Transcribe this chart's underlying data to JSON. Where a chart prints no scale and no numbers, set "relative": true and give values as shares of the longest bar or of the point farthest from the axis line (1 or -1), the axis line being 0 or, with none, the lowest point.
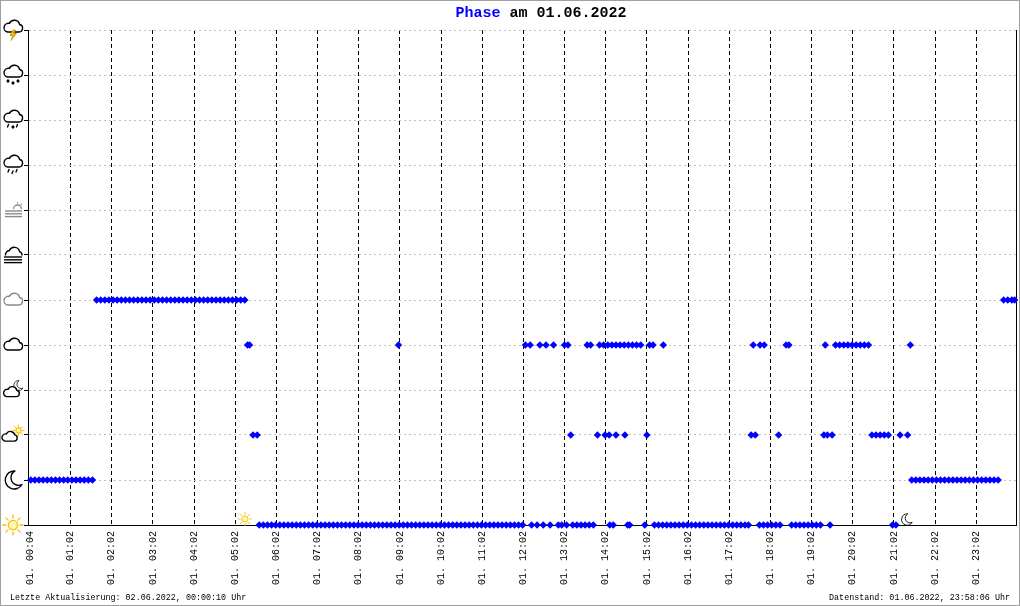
{
  "chart_data": {
    "type": "scatter",
    "title": "Phase am 01.06.2022",
    "annotations": [
      "Letzte Aktualisierung: 02.06.2022, 00:00:10 Uhr",
      "Datenstand: 01.06.2022, 23:58:06 Uhr"
    ],
    "x": [
      "2022-06-01T00:04",
      "2022-06-01T00:10",
      "2022-06-01T00:16",
      "2022-06-01T00:22",
      "2022-06-01T00:28",
      "2022-06-01T00:34",
      "2022-06-01T00:40",
      "2022-06-01T00:46",
      "2022-06-01T00:52",
      "2022-06-01T00:58",
      "2022-06-01T01:04",
      "2022-06-01T01:10",
      "2022-06-01T01:16",
      "2022-06-01T01:22",
      "2022-06-01T01:28",
      "2022-06-01T01:34",
      "2022-06-01T01:40",
      "2022-06-01T01:46",
      "2022-06-01T01:52",
      "2022-06-01T01:58",
      "2022-06-01T02:04",
      "2022-06-01T02:10",
      "2022-06-01T02:16",
      "2022-06-01T02:22",
      "2022-06-01T02:28",
      "2022-06-01T02:34",
      "2022-06-01T02:40",
      "2022-06-01T02:46",
      "2022-06-01T02:52",
      "2022-06-01T02:58",
      "2022-06-01T03:04",
      "2022-06-01T03:10",
      "2022-06-01T03:16",
      "2022-06-01T03:22",
      "2022-06-01T03:28",
      "2022-06-01T03:34",
      "2022-06-01T03:40",
      "2022-06-01T03:46",
      "2022-06-01T03:52",
      "2022-06-01T03:58",
      "2022-06-01T04:04",
      "2022-06-01T04:10",
      "2022-06-01T04:16",
      "2022-06-01T04:22",
      "2022-06-01T04:28",
      "2022-06-01T04:34",
      "2022-06-01T04:40",
      "2022-06-01T04:46",
      "2022-06-01T04:52",
      "2022-06-01T04:58",
      "2022-06-01T05:04",
      "2022-06-01T05:10",
      "2022-06-01T05:16",
      "2022-06-01T05:20",
      "2022-06-01T05:23",
      "2022-06-01T05:28",
      "2022-06-01T05:34",
      "2022-06-01T05:37",
      "2022-06-01T05:43",
      "2022-06-01T05:49",
      "2022-06-01T05:55",
      "2022-06-01T06:01",
      "2022-06-01T06:07",
      "2022-06-01T06:13",
      "2022-06-01T06:19",
      "2022-06-01T06:25",
      "2022-06-01T06:31",
      "2022-06-01T06:37",
      "2022-06-01T06:43",
      "2022-06-01T06:49",
      "2022-06-01T06:55",
      "2022-06-01T07:01",
      "2022-06-01T07:07",
      "2022-06-01T07:13",
      "2022-06-01T07:19",
      "2022-06-01T07:25",
      "2022-06-01T07:31",
      "2022-06-01T07:37",
      "2022-06-01T07:43",
      "2022-06-01T07:49",
      "2022-06-01T07:55",
      "2022-06-01T08:01",
      "2022-06-01T08:07",
      "2022-06-01T08:13",
      "2022-06-01T08:19",
      "2022-06-01T08:25",
      "2022-06-01T08:31",
      "2022-06-01T08:37",
      "2022-06-01T08:43",
      "2022-06-01T08:49",
      "2022-06-01T08:55",
      "2022-06-01T09:01",
      "2022-06-01T09:07",
      "2022-06-01T09:13",
      "2022-06-01T09:19",
      "2022-06-01T09:25",
      "2022-06-01T09:31",
      "2022-06-01T09:37",
      "2022-06-01T09:43",
      "2022-06-01T09:49",
      "2022-06-01T09:55",
      "2022-06-01T10:01",
      "2022-06-01T10:07",
      "2022-06-01T10:13",
      "2022-06-01T10:19",
      "2022-06-01T10:25",
      "2022-06-01T10:31",
      "2022-06-01T10:37",
      "2022-06-01T10:43",
      "2022-06-01T10:49",
      "2022-06-01T10:55",
      "2022-06-01T11:01",
      "2022-06-01T11:07",
      "2022-06-01T11:13",
      "2022-06-01T11:19",
      "2022-06-01T11:25",
      "2022-06-01T11:31",
      "2022-06-01T11:37",
      "2022-06-01T11:43",
      "2022-06-01T11:49",
      "2022-06-01T11:55",
      "2022-06-01T12:01",
      "2022-06-01T09:00",
      "2022-06-01T12:05",
      "2022-06-01T12:12",
      "2022-06-01T12:26",
      "2022-06-01T12:35",
      "2022-06-01T12:46",
      "2022-06-01T13:02",
      "2022-06-01T13:07",
      "2022-06-01T13:35",
      "2022-06-01T13:40",
      "2022-06-01T13:53",
      "2022-06-01T13:59",
      "2022-06-01T14:05",
      "2022-06-01T14:11",
      "2022-06-01T14:17",
      "2022-06-01T14:23",
      "2022-06-01T14:29",
      "2022-06-01T14:35",
      "2022-06-01T14:41",
      "2022-06-01T14:47",
      "2022-06-01T14:53",
      "2022-06-01T15:06",
      "2022-06-01T15:11",
      "2022-06-01T15:26",
      "2022-06-01T13:11",
      "2022-06-01T13:50",
      "2022-06-01T14:01",
      "2022-06-01T14:07",
      "2022-06-01T14:17",
      "2022-06-01T14:30",
      "2022-06-01T15:02",
      "2022-06-01T12:14",
      "2022-06-01T12:22",
      "2022-06-01T12:31",
      "2022-06-01T12:41",
      "2022-06-01T12:53",
      "2022-06-01T12:58",
      "2022-06-01T13:05",
      "2022-06-01T13:14",
      "2022-06-01T13:20",
      "2022-06-01T13:26",
      "2022-06-01T13:32",
      "2022-06-01T13:38",
      "2022-06-01T13:44",
      "2022-06-01T14:08",
      "2022-06-01T14:13",
      "2022-06-01T14:34",
      "2022-06-01T14:37",
      "2022-06-01T14:59",
      "2022-06-01T15:13",
      "2022-06-01T15:19",
      "2022-06-01T15:25",
      "2022-06-01T15:31",
      "2022-06-01T15:37",
      "2022-06-01T15:43",
      "2022-06-01T15:49",
      "2022-06-01T15:55",
      "2022-06-01T16:01",
      "2022-06-01T16:07",
      "2022-06-01T16:13",
      "2022-06-01T16:19",
      "2022-06-01T16:25",
      "2022-06-01T16:31",
      "2022-06-01T16:37",
      "2022-06-01T16:43",
      "2022-06-01T16:49",
      "2022-06-01T16:55",
      "2022-06-01T17:01",
      "2022-06-01T17:07",
      "2022-06-01T17:13",
      "2022-06-01T17:19",
      "2022-06-01T17:25",
      "2022-06-01T17:30",
      "2022-06-01T17:34",
      "2022-06-01T17:40",
      "2022-06-01T18:14",
      "2022-06-01T17:37",
      "2022-06-01T17:47",
      "2022-06-01T17:53",
      "2022-06-01T18:25",
      "2022-06-01T18:29",
      "2022-06-01T17:46",
      "2022-06-01T17:52",
      "2022-06-01T17:58",
      "2022-06-01T18:04",
      "2022-06-01T18:10",
      "2022-06-01T18:16",
      "2022-06-01T18:33",
      "2022-06-01T18:39",
      "2022-06-01T18:45",
      "2022-06-01T18:51",
      "2022-06-01T18:57",
      "2022-06-01T19:03",
      "2022-06-01T19:09",
      "2022-06-01T19:15",
      "2022-06-01T19:29",
      "2022-06-01T19:22",
      "2022-06-01T19:37",
      "2022-06-01T19:43",
      "2022-06-01T19:49",
      "2022-06-01T19:55",
      "2022-06-01T20:01",
      "2022-06-01T20:07",
      "2022-06-01T20:13",
      "2022-06-01T20:19",
      "2022-06-01T20:25",
      "2022-06-01T21:26",
      "2022-06-01T19:20",
      "2022-06-01T19:25",
      "2022-06-01T19:32",
      "2022-06-01T20:30",
      "2022-06-01T20:36",
      "2022-06-01T20:42",
      "2022-06-01T20:48",
      "2022-06-01T20:54",
      "2022-06-01T21:11",
      "2022-06-01T21:22",
      "2022-06-01T21:00",
      "2022-06-01T21:05",
      "2022-06-01T21:28",
      "2022-06-01T21:34",
      "2022-06-01T21:40",
      "2022-06-01T21:46",
      "2022-06-01T21:52",
      "2022-06-01T21:58",
      "2022-06-01T22:04",
      "2022-06-01T22:10",
      "2022-06-01T22:16",
      "2022-06-01T22:22",
      "2022-06-01T22:28",
      "2022-06-01T22:34",
      "2022-06-01T22:40",
      "2022-06-01T22:46",
      "2022-06-01T22:52",
      "2022-06-01T22:58",
      "2022-06-01T23:04",
      "2022-06-01T23:10",
      "2022-06-01T23:16",
      "2022-06-01T23:22",
      "2022-06-01T23:28",
      "2022-06-01T23:34",
      "2022-06-01T23:42",
      "2022-06-01T23:48",
      "2022-06-01T23:54",
      "2022-06-01T23:58"
    ],
    "values": [
      0.2,
      0.2,
      0.2,
      0.2,
      0.2,
      0.2,
      0.2,
      0.2,
      0.2,
      0.2,
      0.2,
      0.2,
      0.2,
      0.2,
      0.2,
      0.2,
      1,
      1,
      1,
      1,
      1,
      1,
      1,
      1,
      1,
      1,
      1,
      1,
      1,
      1,
      1,
      1,
      1,
      1,
      1,
      1,
      1,
      1,
      1,
      1,
      1,
      1,
      1,
      1,
      1,
      1,
      1,
      1,
      1,
      1,
      1,
      1,
      1,
      0.8,
      0.8,
      0.4,
      0.4,
      0,
      0,
      0,
      0,
      0,
      0,
      0,
      0,
      0,
      0,
      0,
      0,
      0,
      0,
      0,
      0,
      0,
      0,
      0,
      0,
      0,
      0,
      0,
      0,
      0,
      0,
      0,
      0,
      0,
      0,
      0,
      0,
      0,
      0,
      0,
      0,
      0,
      0,
      0,
      0,
      0,
      0,
      0,
      0,
      0,
      0,
      0,
      0,
      0,
      0,
      0,
      0,
      0,
      0,
      0,
      0,
      0,
      0,
      0,
      0,
      0,
      0,
      0,
      0,
      0,
      0.8,
      0.8,
      0.8,
      0.8,
      0.8,
      0.8,
      0.8,
      0.8,
      0.8,
      0.8,
      0.8,
      0.8,
      0.8,
      0.8,
      0.8,
      0.8,
      0.8,
      0.8,
      0.8,
      0.8,
      0.8,
      0.8,
      0.8,
      0.8,
      0.4,
      0.4,
      0.4,
      0.4,
      0.4,
      0.4,
      0.4,
      0,
      0,
      0,
      0,
      0,
      0,
      0,
      0,
      0,
      0,
      0,
      0,
      0,
      0,
      0,
      0,
      0,
      0,
      0,
      0,
      0,
      0,
      0,
      0,
      0,
      0,
      0,
      0,
      0,
      0,
      0,
      0,
      0,
      0,
      0,
      0,
      0,
      0,
      0,
      0,
      0,
      0,
      0.4,
      0.4,
      0.4,
      0.8,
      0.8,
      0.8,
      0.8,
      0.8,
      0,
      0,
      0,
      0,
      0,
      0,
      0,
      0,
      0,
      0,
      0,
      0,
      0,
      0,
      0,
      0.8,
      0.8,
      0.8,
      0.8,
      0.8,
      0.8,
      0.8,
      0.8,
      0.8,
      0.8,
      0.8,
      0.4,
      0.4,
      0.4,
      0.4,
      0.4,
      0.4,
      0.4,
      0.4,
      0.4,
      0.4,
      0,
      0,
      0.2,
      0.2,
      0.2,
      0.2,
      0.2,
      0.2,
      0.2,
      0.2,
      0.2,
      0.2,
      0.2,
      0.2,
      0.2,
      0.2,
      0.2,
      0.2,
      0.2,
      0.2,
      0.2,
      0.2,
      0.2,
      0.2,
      1,
      1,
      1,
      1
    ],
    "relative": true,
    "color": "#0000ff",
    "marker": "diamond",
    "xlim": [
      "2022-06-01T00:00",
      "2022-06-02T00:00"
    ],
    "xticks": [
      {
        "value": "2022-06-01T00:04",
        "label": "01. 00:04"
      },
      {
        "value": "2022-06-01T01:02",
        "label": "01. 01:02"
      },
      {
        "value": "2022-06-01T02:02",
        "label": "01. 02:02"
      },
      {
        "value": "2022-06-01T03:02",
        "label": "01. 03:02"
      },
      {
        "value": "2022-06-01T04:02",
        "label": "01. 04:02"
      },
      {
        "value": "2022-06-01T05:02",
        "label": "01. 05:02"
      },
      {
        "value": "2022-06-01T06:02",
        "label": "01. 06:02"
      },
      {
        "value": "2022-06-01T07:02",
        "label": "01. 07:02"
      },
      {
        "value": "2022-06-01T08:02",
        "label": "01. 08:02"
      },
      {
        "value": "2022-06-01T09:02",
        "label": "01. 09:02"
      },
      {
        "value": "2022-06-01T10:02",
        "label": "01. 10:02"
      },
      {
        "value": "2022-06-01T11:02",
        "label": "01. 11:02"
      },
      {
        "value": "2022-06-01T12:02",
        "label": "01. 12:02"
      },
      {
        "value": "2022-06-01T13:02",
        "label": "01. 13:02"
      },
      {
        "value": "2022-06-01T14:02",
        "label": "01. 14:02"
      },
      {
        "value": "2022-06-01T15:02",
        "label": "01. 15:02"
      },
      {
        "value": "2022-06-01T16:02",
        "label": "01. 16:02"
      },
      {
        "value": "2022-06-01T17:02",
        "label": "01. 17:02"
      },
      {
        "value": "2022-06-01T18:02",
        "label": "01. 18:02"
      },
      {
        "value": "2022-06-01T19:02",
        "label": "01. 19:02"
      },
      {
        "value": "2022-06-01T20:02",
        "label": "01. 20:02"
      },
      {
        "value": "2022-06-01T21:02",
        "label": "01. 21:02"
      },
      {
        "value": "2022-06-01T22:02",
        "label": "01. 22:02"
      },
      {
        "value": "2022-06-01T23:02",
        "label": "01. 23:02"
      }
    ],
    "grid": true,
    "tick_labels": "x"
  }
}
